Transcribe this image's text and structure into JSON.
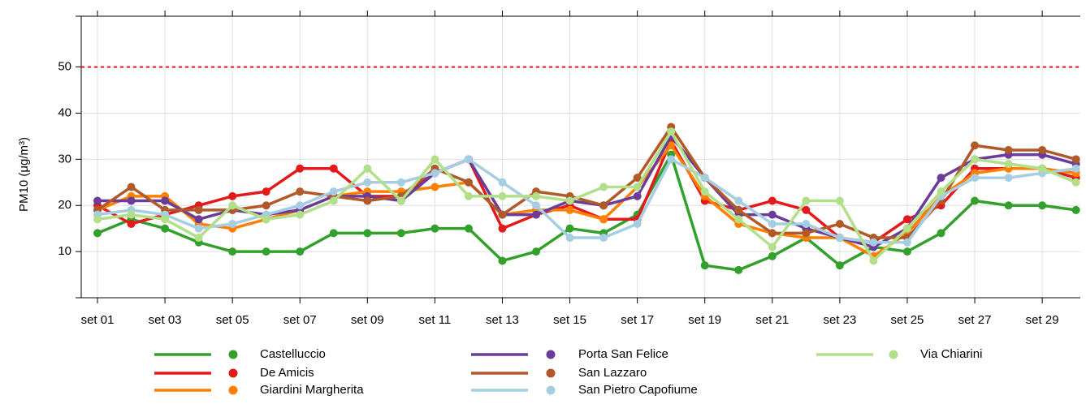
{
  "chart_data": {
    "type": "line",
    "y_label": "PM10 (μg/m³)",
    "categories": [
      "set 01",
      null,
      "set 03",
      null,
      "set 05",
      null,
      "set 07",
      null,
      "set 09",
      null,
      "set 11",
      null,
      "set 13",
      null,
      "set 15",
      null,
      "set 17",
      null,
      "set 19",
      null,
      "set 21",
      null,
      "set 23",
      null,
      "set 25",
      null,
      "set 27",
      null,
      "set 29",
      null
    ],
    "ylim": [
      0,
      61
    ],
    "yticks": [
      10,
      20,
      30,
      40,
      50
    ],
    "grid": true,
    "reference_line": 50,
    "reference_color": "#e31a1c",
    "series": [
      {
        "name": "Castelluccio",
        "color": "#33a02c",
        "values": [
          14,
          17,
          15,
          12,
          10,
          10,
          10,
          14,
          14,
          14,
          15,
          15,
          8,
          10,
          15,
          14,
          18,
          31,
          7,
          6,
          9,
          13,
          7,
          11,
          10,
          14,
          21,
          20,
          20,
          19
        ]
      },
      {
        "name": "De Amicis",
        "color": "#e31a1c",
        "values": [
          20,
          16,
          18,
          20,
          22,
          23,
          28,
          28,
          22,
          22,
          27,
          30,
          15,
          18,
          20,
          17,
          17,
          34,
          21,
          19,
          21,
          19,
          13,
          12,
          17,
          20,
          28,
          28,
          28,
          26
        ]
      },
      {
        "name": "Giardini Margherita",
        "color": "#ff7f00",
        "values": [
          19,
          22,
          22,
          16,
          15,
          17,
          19,
          22,
          23,
          23,
          24,
          25,
          18,
          19,
          19,
          17,
          24,
          33,
          22,
          16,
          14,
          13,
          13,
          9,
          14,
          22,
          27,
          28,
          28,
          27
        ]
      },
      {
        "name": "Porta San Felice",
        "color": "#6a3d9a",
        "values": [
          21,
          21,
          21,
          17,
          19,
          18,
          19,
          22,
          22,
          21,
          27,
          30,
          18,
          18,
          21,
          20,
          22,
          35,
          26,
          18,
          18,
          15,
          13,
          11,
          15,
          26,
          30,
          31,
          31,
          29
        ]
      },
      {
        "name": "San Lazzaro",
        "color": "#b15928",
        "values": [
          19,
          24,
          19,
          19,
          19,
          20,
          23,
          22,
          21,
          22,
          28,
          25,
          18,
          23,
          22,
          20,
          26,
          37,
          26,
          19,
          14,
          14,
          16,
          13,
          13,
          21,
          33,
          32,
          32,
          30
        ]
      },
      {
        "name": "San Pietro Capofiume",
        "color": "#a6cee3",
        "values": [
          18,
          19,
          18,
          15,
          16,
          18,
          20,
          23,
          25,
          25,
          27,
          30,
          25,
          20,
          13,
          13,
          16,
          30,
          26,
          21,
          16,
          16,
          13,
          12,
          12,
          22,
          26,
          26,
          27,
          28
        ]
      },
      {
        "name": "Via Chiarini",
        "color": "#b2df8a",
        "values": [
          17,
          18,
          17,
          13,
          20,
          17,
          18,
          21,
          28,
          21,
          30,
          22,
          22,
          22,
          21,
          24,
          24,
          36,
          23,
          17,
          11,
          21,
          21,
          8,
          15,
          23,
          30,
          29,
          28,
          25
        ]
      }
    ]
  }
}
